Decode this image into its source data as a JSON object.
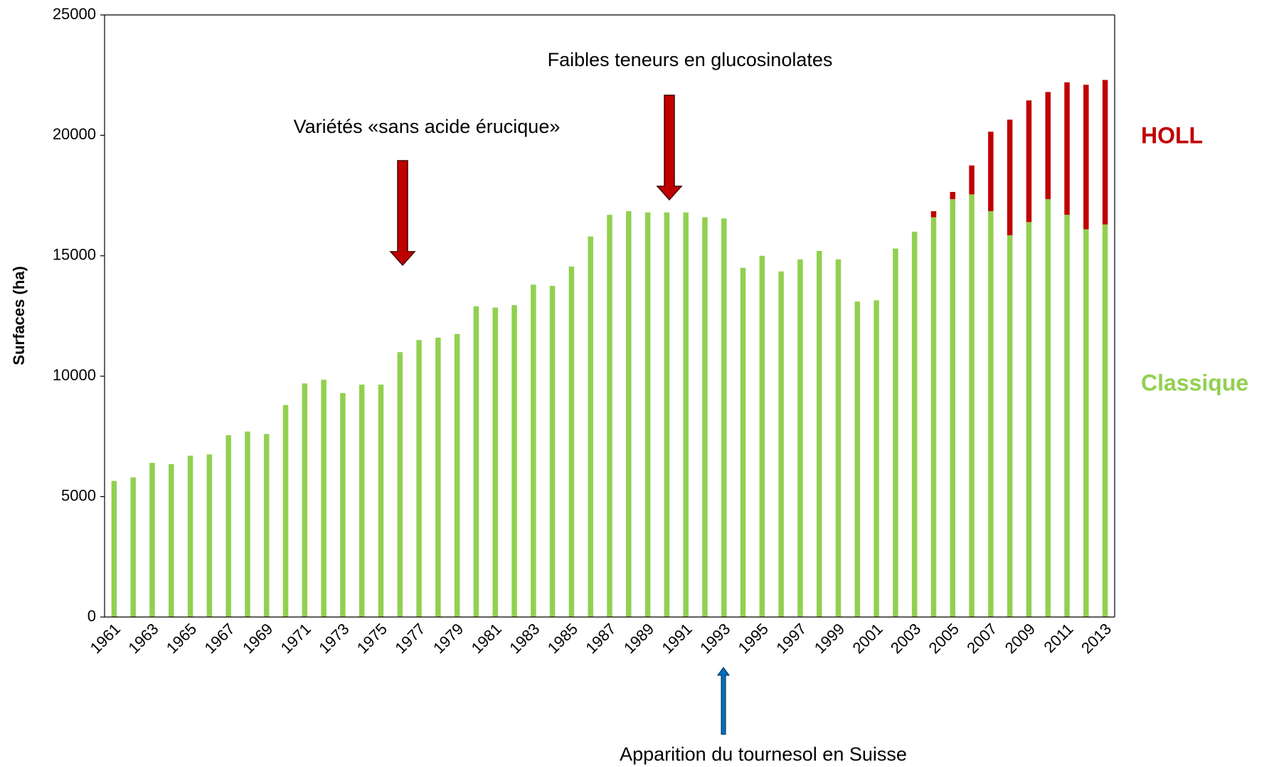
{
  "chart_data": {
    "type": "bar",
    "stacked": true,
    "y_label": "Surfaces (ha)",
    "categories": [
      "1961",
      null,
      "1963",
      null,
      "1965",
      null,
      "1967",
      null,
      "1969",
      null,
      "1971",
      null,
      "1973",
      null,
      "1975",
      null,
      "1977",
      null,
      "1979",
      null,
      "1981",
      null,
      "1983",
      null,
      "1985",
      null,
      "1987",
      null,
      "1989",
      null,
      "1991",
      null,
      "1993",
      null,
      "1995",
      null,
      "1997",
      null,
      "1999",
      null,
      "2001",
      null,
      "2003",
      null,
      "2005",
      null,
      "2007",
      null,
      "2009",
      null,
      "2011",
      null,
      "2013"
    ],
    "series": [
      {
        "name": "Classique",
        "color": "#92d050",
        "values": [
          5650,
          5800,
          6400,
          6350,
          6700,
          6750,
          7550,
          7700,
          7600,
          8800,
          9700,
          9850,
          9300,
          9650,
          9650,
          11000,
          11500,
          11600,
          11750,
          12900,
          12850,
          12950,
          13800,
          13750,
          14550,
          15800,
          16700,
          16850,
          16800,
          16800,
          16800,
          16600,
          16550,
          14500,
          15000,
          14350,
          14850,
          15200,
          14850,
          13100,
          13150,
          15300,
          16000,
          16600,
          17350,
          17550,
          16850,
          15850,
          16400,
          17350,
          16700,
          16100,
          16300
        ]
      },
      {
        "name": "HOLL",
        "color": "#c00000",
        "values": [
          0,
          0,
          0,
          0,
          0,
          0,
          0,
          0,
          0,
          0,
          0,
          0,
          0,
          0,
          0,
          0,
          0,
          0,
          0,
          0,
          0,
          0,
          0,
          0,
          0,
          0,
          0,
          0,
          0,
          0,
          0,
          0,
          0,
          0,
          0,
          0,
          0,
          0,
          0,
          0,
          0,
          0,
          0,
          250,
          300,
          1200,
          3300,
          4800,
          5050,
          4450,
          5500,
          6000,
          6000
        ]
      }
    ],
    "annotations": [
      "Faibles teneurs en glucosinolates",
      "Variétés «sans acide érucique»",
      "Apparition du tournesol en Suisse"
    ],
    "ylim": [
      0,
      25000
    ],
    "yticks": [
      0,
      5000,
      10000,
      15000,
      20000,
      25000
    ],
    "grid": false
  }
}
